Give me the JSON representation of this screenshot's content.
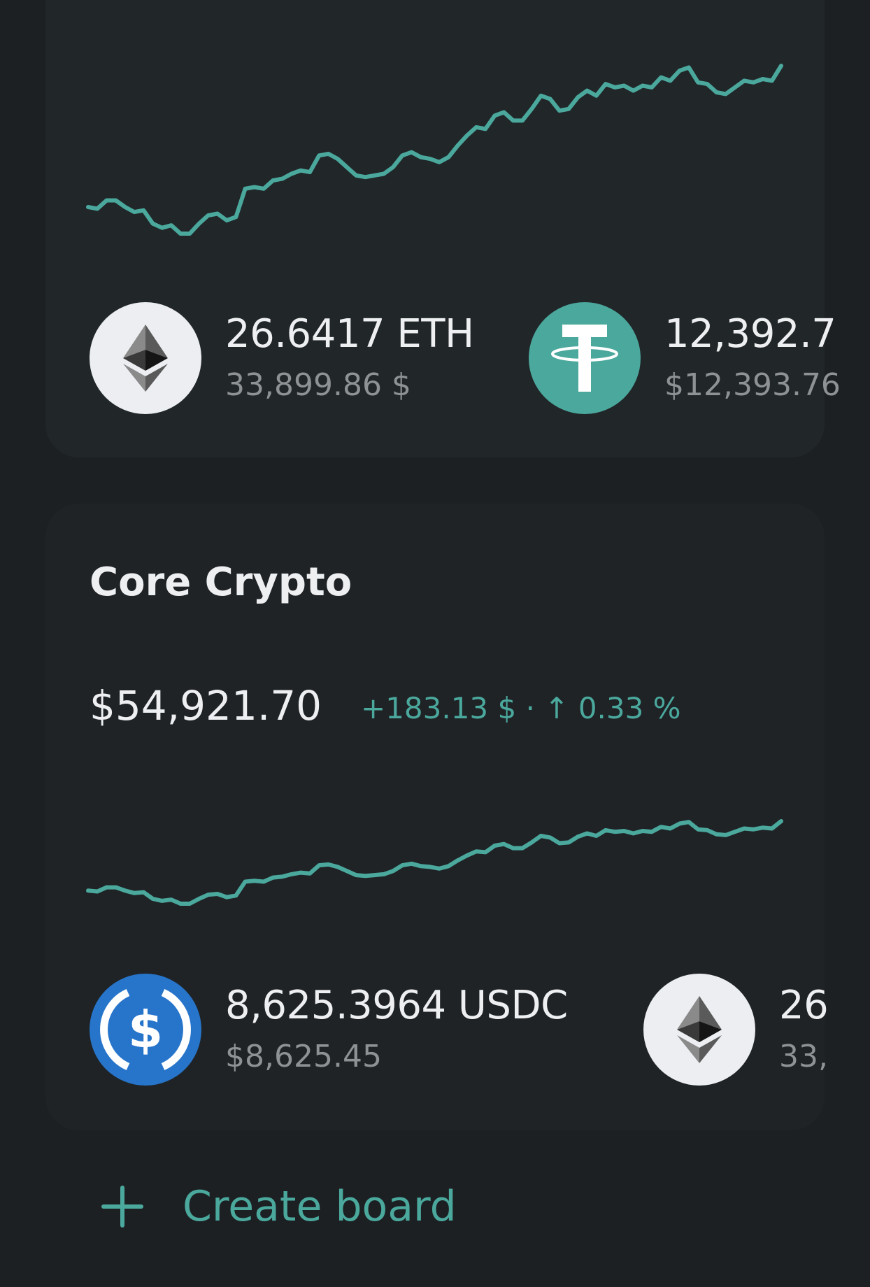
{
  "colors": {
    "accent": "#4ba89d",
    "background": "#1c2023",
    "card": "#212629",
    "usdc": "#2775ca",
    "tether": "#4ba89d"
  },
  "board1": {
    "coins": [
      {
        "icon": "ethereum-icon",
        "amount": "26.6417 ETH",
        "fiat": "33,899.86 $"
      },
      {
        "icon": "tether-icon",
        "amount": "12,392.7",
        "fiat": "$12,393.76"
      }
    ]
  },
  "board2": {
    "title": "Core Crypto",
    "total": "$54,921.70",
    "change": "+183.13 $ · ↑ 0.33 %",
    "coins": [
      {
        "icon": "usdc-icon",
        "amount": "8,625.3964 USDC",
        "fiat": "$8,625.45"
      },
      {
        "icon": "ethereum-icon",
        "amount": "26",
        "fiat": "33,"
      }
    ]
  },
  "create_board": {
    "label": "Create board",
    "icon": "plus-icon"
  },
  "chart_data": [
    {
      "type": "line",
      "grid": false,
      "values": [
        50,
        48,
        58,
        58,
        50,
        44,
        46,
        30,
        25,
        28,
        18,
        18,
        30,
        40,
        42,
        34,
        38,
        72,
        74,
        72,
        82,
        84,
        90,
        94,
        92,
        112,
        114,
        108,
        98,
        88,
        86,
        88,
        90,
        98,
        112,
        116,
        110,
        108,
        104,
        110,
        124,
        136,
        146,
        144,
        160,
        164,
        154,
        154,
        168,
        184,
        180,
        166,
        168,
        182,
        190,
        184,
        198,
        194,
        196,
        190,
        196,
        194,
        206,
        202,
        214,
        218,
        200,
        198,
        188,
        186,
        194,
        202,
        200,
        204,
        202,
        220
      ]
    },
    {
      "type": "line",
      "grid": false,
      "values": [
        50,
        48,
        58,
        58,
        50,
        44,
        46,
        30,
        25,
        28,
        18,
        18,
        30,
        40,
        42,
        34,
        38,
        72,
        74,
        72,
        82,
        84,
        90,
        94,
        92,
        112,
        114,
        108,
        98,
        88,
        86,
        88,
        90,
        98,
        112,
        116,
        110,
        108,
        104,
        110,
        124,
        136,
        146,
        144,
        160,
        164,
        154,
        154,
        168,
        184,
        180,
        166,
        168,
        182,
        190,
        184,
        198,
        194,
        196,
        190,
        196,
        194,
        206,
        202,
        214,
        218,
        200,
        198,
        188,
        186,
        194,
        202,
        200,
        204,
        202,
        220
      ]
    }
  ]
}
